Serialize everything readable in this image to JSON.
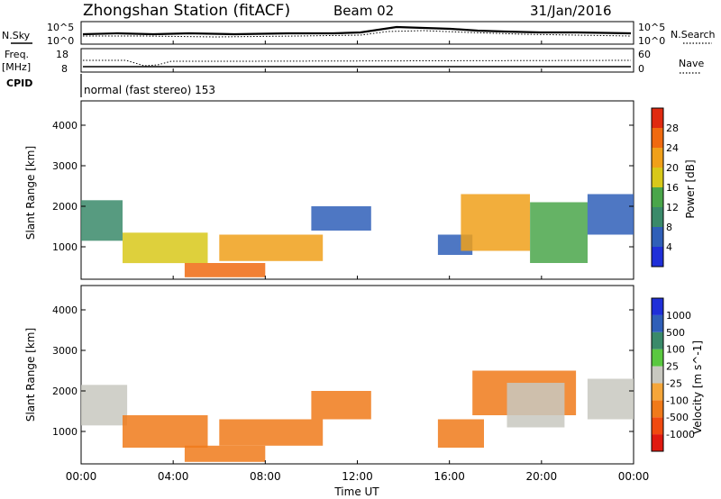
{
  "header": {
    "station": "Zhongshan Station (fitACF)",
    "beam": "Beam 02",
    "date": "31/Jan/2016"
  },
  "strip": {
    "nsky_label": "N.Sky",
    "nsearch_label": "N.Search",
    "noise_ticks_left": [
      "10^5",
      "10^0"
    ],
    "noise_ticks_right": [
      "10^5",
      "10^0"
    ],
    "freq_label_1": "Freq.",
    "freq_label_2": "[MHz]",
    "freq_ticks": [
      "18",
      "8"
    ],
    "nave_label": "Nave",
    "nave_ticks": [
      "60",
      "0"
    ],
    "cpid_label": "CPID",
    "cpid_text": "normal (fast stereo) 153"
  },
  "colors": {
    "power_scale": [
      "#1f2fd8",
      "#2f5fb8",
      "#3a8a6a",
      "#4aa64a",
      "#d8c81a",
      "#f0a01a",
      "#f06a10",
      "#e02a10"
    ],
    "velocity_scale": [
      "#e01a10",
      "#f04a10",
      "#f07a1a",
      "#f5a63a",
      "#c8c8c0",
      "#5ac840",
      "#3a8a6a",
      "#2f5fb8",
      "#1f2fd8"
    ]
  },
  "chart_data": [
    {
      "type": "heatmap",
      "panel": "power",
      "x": [
        "00:00",
        "04:00",
        "08:00",
        "12:00",
        "16:00",
        "20:00",
        "00:00"
      ],
      "xlabel": "Time UT",
      "ylabel": "Slant Range [km]",
      "yticks": [
        "1000",
        "2000",
        "3000",
        "4000"
      ],
      "ylim": [
        200,
        4600
      ],
      "colorbar_label": "Power [dB]",
      "colorbar_ticks": [
        "4",
        "8",
        "12",
        "16",
        "20",
        "24",
        "28"
      ],
      "regions": [
        {
          "t0": 0.0,
          "t1": 1.8,
          "r0": 1150,
          "r1": 2150,
          "value": 12
        },
        {
          "t0": 1.8,
          "t1": 5.5,
          "r0": 600,
          "r1": 1350,
          "value": 20
        },
        {
          "t0": 4.5,
          "t1": 8.0,
          "r0": 250,
          "r1": 600,
          "value": 26
        },
        {
          "t0": 6.0,
          "t1": 10.5,
          "r0": 650,
          "r1": 1300,
          "value": 22
        },
        {
          "t0": 10.0,
          "t1": 12.6,
          "r0": 1400,
          "r1": 2000,
          "value": 8
        },
        {
          "t0": 15.5,
          "t1": 17.0,
          "r0": 800,
          "r1": 1300,
          "value": 8
        },
        {
          "t0": 16.5,
          "t1": 19.5,
          "r0": 900,
          "r1": 2300,
          "value": 24
        },
        {
          "t0": 19.5,
          "t1": 22.0,
          "r0": 600,
          "r1": 2100,
          "value": 16
        },
        {
          "t0": 22.0,
          "t1": 24.0,
          "r0": 1300,
          "r1": 2300,
          "value": 8
        }
      ]
    },
    {
      "type": "heatmap",
      "panel": "velocity",
      "x": [
        "00:00",
        "04:00",
        "08:00",
        "12:00",
        "16:00",
        "20:00",
        "00:00"
      ],
      "xlabel": "Time UT",
      "ylabel": "Slant Range [km]",
      "yticks": [
        "1000",
        "2000",
        "3000",
        "4000"
      ],
      "ylim": [
        200,
        4600
      ],
      "colorbar_label": "Velocity [m s^-1]",
      "colorbar_ticks": [
        "1000",
        "500",
        "100",
        "25",
        "-25",
        "-100",
        "-500",
        "-1000"
      ],
      "regions": [
        {
          "t0": 0.0,
          "t1": 2.0,
          "r0": 1150,
          "r1": 2150,
          "value": 0
        },
        {
          "t0": 1.8,
          "t1": 5.5,
          "r0": 600,
          "r1": 1400,
          "value": -200
        },
        {
          "t0": 4.5,
          "t1": 8.0,
          "r0": 250,
          "r1": 650,
          "value": -300
        },
        {
          "t0": 6.0,
          "t1": 10.5,
          "r0": 650,
          "r1": 1300,
          "value": -150
        },
        {
          "t0": 10.0,
          "t1": 12.6,
          "r0": 1300,
          "r1": 2000,
          "value": -100
        },
        {
          "t0": 15.5,
          "t1": 17.5,
          "r0": 600,
          "r1": 1300,
          "value": -300
        },
        {
          "t0": 17.0,
          "t1": 21.5,
          "r0": 1400,
          "r1": 2500,
          "value": -200
        },
        {
          "t0": 18.5,
          "t1": 21.0,
          "r0": 1100,
          "r1": 2200,
          "value": 0
        },
        {
          "t0": 22.0,
          "t1": 24.0,
          "r0": 1300,
          "r1": 2300,
          "value": 0
        }
      ]
    }
  ]
}
